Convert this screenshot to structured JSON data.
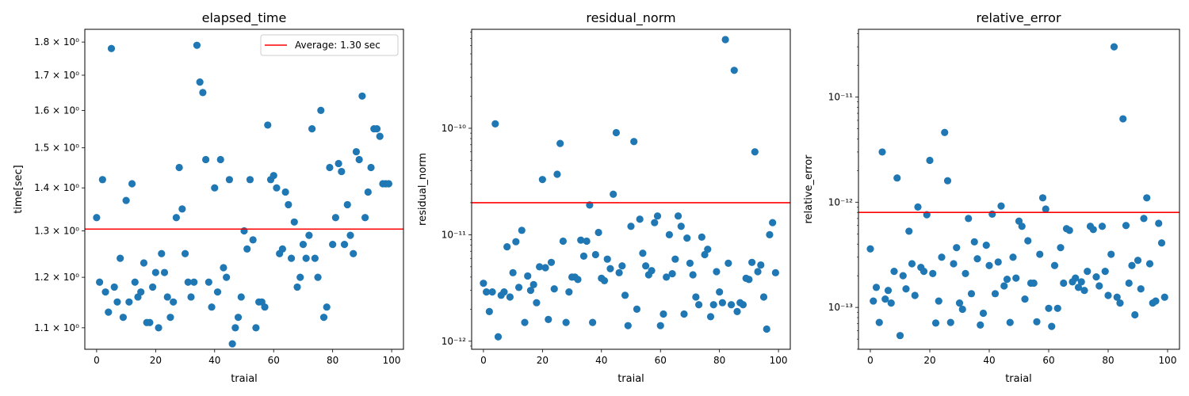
{
  "chart_data": [
    {
      "type": "scatter",
      "title": "elapsed_time",
      "xlabel": "traial",
      "ylabel": "time[sec]",
      "xlim": [
        -4,
        104
      ],
      "ylim": [
        1.06,
        1.84
      ],
      "yscale": "log",
      "x_ticks": [
        0,
        20,
        40,
        60,
        80,
        100
      ],
      "y_ticks": [
        {
          "value": 1.1,
          "label": "1.1 × 10⁰"
        },
        {
          "value": 1.2,
          "label": "1.2 × 10⁰"
        },
        {
          "value": 1.3,
          "label": "1.3 × 10⁰"
        },
        {
          "value": 1.4,
          "label": "1.4 × 10⁰"
        },
        {
          "value": 1.5,
          "label": "1.5 × 10⁰"
        },
        {
          "value": 1.6,
          "label": "1.6 × 10⁰"
        },
        {
          "value": 1.7,
          "label": "1.7 × 10⁰"
        },
        {
          "value": 1.8,
          "label": "1.8 × 10⁰"
        }
      ],
      "hline": {
        "value": 1.304,
        "color": "#ff0000",
        "label": "Average: 1.30 sec"
      },
      "legend_position": "top-right",
      "marker_color": "#1f77b4",
      "x": [
        0,
        1,
        2,
        3,
        4,
        5,
        6,
        7,
        8,
        9,
        10,
        11,
        12,
        13,
        14,
        15,
        16,
        17,
        18,
        19,
        20,
        21,
        22,
        23,
        24,
        25,
        26,
        27,
        28,
        29,
        30,
        31,
        32,
        33,
        34,
        35,
        36,
        37,
        38,
        39,
        40,
        41,
        42,
        43,
        44,
        45,
        46,
        47,
        48,
        49,
        50,
        51,
        52,
        53,
        54,
        55,
        56,
        57,
        58,
        59,
        60,
        61,
        62,
        63,
        64,
        65,
        66,
        67,
        68,
        69,
        70,
        71,
        72,
        73,
        74,
        75,
        76,
        77,
        78,
        79,
        80,
        81,
        82,
        83,
        84,
        85,
        86,
        87,
        88,
        89,
        90,
        91,
        92,
        93,
        94,
        95,
        96,
        97,
        98,
        99
      ],
      "y": [
        1.33,
        1.19,
        1.42,
        1.17,
        1.13,
        1.78,
        1.18,
        1.15,
        1.24,
        1.12,
        1.37,
        1.15,
        1.41,
        1.19,
        1.16,
        1.17,
        1.23,
        1.11,
        1.11,
        1.18,
        1.21,
        1.1,
        1.25,
        1.21,
        1.16,
        1.12,
        1.15,
        1.33,
        1.45,
        1.35,
        1.25,
        1.19,
        1.16,
        1.19,
        1.79,
        1.68,
        1.65,
        1.47,
        1.19,
        1.14,
        1.4,
        1.17,
        1.47,
        1.22,
        1.2,
        1.42,
        1.07,
        1.1,
        1.12,
        1.16,
        1.3,
        1.26,
        1.42,
        1.28,
        1.1,
        1.15,
        1.15,
        1.14,
        1.56,
        1.42,
        1.43,
        1.4,
        1.25,
        1.26,
        1.39,
        1.36,
        1.24,
        1.32,
        1.18,
        1.2,
        1.27,
        1.24,
        1.29,
        1.55,
        1.24,
        1.2,
        1.6,
        1.12,
        1.14,
        1.45,
        1.27,
        1.33,
        1.46,
        1.44,
        1.27,
        1.36,
        1.29,
        1.25,
        1.49,
        1.47,
        1.64,
        1.33,
        1.39,
        1.45,
        1.55,
        1.55,
        1.53,
        1.41,
        1.41,
        1.41
      ]
    },
    {
      "type": "scatter",
      "title": "residual_norm",
      "xlabel": "traial",
      "ylabel": "residual_norm",
      "xlim": [
        -4,
        104
      ],
      "ylim": [
        8.4e-13,
        8.5e-10
      ],
      "yscale": "log",
      "x_ticks": [
        0,
        20,
        40,
        60,
        80,
        100
      ],
      "y_ticks": [
        {
          "value": 1e-12,
          "label": "10⁻¹²"
        },
        {
          "value": 1e-11,
          "label": "10⁻¹¹"
        },
        {
          "value": 1e-10,
          "label": "10⁻¹⁰"
        }
      ],
      "hline": {
        "value": 2e-11,
        "color": "#ff0000",
        "label": ""
      },
      "marker_color": "#1f77b4",
      "x": [
        0,
        1,
        2,
        3,
        4,
        5,
        6,
        7,
        8,
        9,
        10,
        11,
        12,
        13,
        14,
        15,
        16,
        17,
        18,
        19,
        20,
        21,
        22,
        23,
        24,
        25,
        26,
        27,
        28,
        29,
        30,
        31,
        32,
        33,
        34,
        35,
        36,
        37,
        38,
        39,
        40,
        41,
        42,
        43,
        44,
        45,
        46,
        47,
        48,
        49,
        50,
        51,
        52,
        53,
        54,
        55,
        56,
        57,
        58,
        59,
        60,
        61,
        62,
        63,
        64,
        65,
        66,
        67,
        68,
        69,
        70,
        71,
        72,
        73,
        74,
        75,
        76,
        77,
        78,
        79,
        80,
        81,
        82,
        83,
        84,
        85,
        86,
        87,
        88,
        89,
        90,
        91,
        92,
        93,
        94,
        95,
        96,
        97,
        98,
        99
      ],
      "y": [
        3.5e-12,
        2.9e-12,
        1.9e-12,
        2.9e-12,
        1.1e-10,
        1.1e-12,
        2.7e-12,
        2.9e-12,
        7.7e-12,
        2.6e-12,
        4.4e-12,
        8.6e-12,
        3.2e-12,
        1.1e-11,
        1.5e-12,
        4.1e-12,
        3e-12,
        3.4e-12,
        2.3e-12,
        5e-12,
        3.3e-11,
        4.9e-12,
        1.6e-12,
        5.5e-12,
        3.1e-12,
        3.7e-11,
        7.2e-11,
        8.7e-12,
        1.5e-12,
        2.9e-12,
        4e-12,
        4e-12,
        3.8e-12,
        8.9e-12,
        6.3e-12,
        8.7e-12,
        1.9e-11,
        1.5e-12,
        6.5e-12,
        1.05e-11,
        3.9e-12,
        3.7e-12,
        5.9e-12,
        4.8e-12,
        2.4e-11,
        9.1e-11,
        4.4e-12,
        5.1e-12,
        2.7e-12,
        1.4e-12,
        1.2e-11,
        7.5e-11,
        2e-12,
        1.4e-11,
        6.7e-12,
        5.1e-12,
        4.2e-12,
        4.6e-12,
        1.3e-11,
        1.5e-11,
        1.4e-12,
        1.8e-12,
        4e-12,
        1e-11,
        4.3e-12,
        5.9e-12,
        1.5e-11,
        1.2e-11,
        1.8e-12,
        9.3e-12,
        5.4e-12,
        4.2e-12,
        2.6e-12,
        2.2e-12,
        9.5e-12,
        6.5e-12,
        7.3e-12,
        1.7e-12,
        2.2e-12,
        4.5e-12,
        2.9e-12,
        2.3e-12,
        6.8e-10,
        5.4e-12,
        2.2e-12,
        3.5e-10,
        1.9e-12,
        2.3e-12,
        2.2e-12,
        3.9e-12,
        3.8e-12,
        5.5e-12,
        6e-11,
        4.5e-12,
        5.2e-12,
        2.6e-12,
        1.3e-12,
        1e-11,
        1.3e-11,
        4.4e-12
      ]
    },
    {
      "type": "scatter",
      "title": "relative_error",
      "xlabel": "traial",
      "ylabel": "relative_error",
      "xlim": [
        -4,
        104
      ],
      "ylim": [
        4e-14,
        4.4e-11
      ],
      "yscale": "log",
      "x_ticks": [
        0,
        20,
        40,
        60,
        80,
        100
      ],
      "y_ticks": [
        {
          "value": 1e-13,
          "label": "10⁻¹³"
        },
        {
          "value": 1e-12,
          "label": "10⁻¹²"
        },
        {
          "value": 1e-11,
          "label": "10⁻¹¹"
        }
      ],
      "hline": {
        "value": 8e-13,
        "color": "#ff0000",
        "label": ""
      },
      "marker_color": "#1f77b4",
      "x": [
        0,
        1,
        2,
        3,
        4,
        5,
        6,
        7,
        8,
        9,
        10,
        11,
        12,
        13,
        14,
        15,
        16,
        17,
        18,
        19,
        20,
        21,
        22,
        23,
        24,
        25,
        26,
        27,
        28,
        29,
        30,
        31,
        32,
        33,
        34,
        35,
        36,
        37,
        38,
        39,
        40,
        41,
        42,
        43,
        44,
        45,
        46,
        47,
        48,
        49,
        50,
        51,
        52,
        53,
        54,
        55,
        56,
        57,
        58,
        59,
        60,
        61,
        62,
        63,
        64,
        65,
        66,
        67,
        68,
        69,
        70,
        71,
        72,
        73,
        74,
        75,
        76,
        77,
        78,
        79,
        80,
        81,
        82,
        83,
        84,
        85,
        86,
        87,
        88,
        89,
        90,
        91,
        92,
        93,
        94,
        95,
        96,
        97,
        98,
        99
      ],
      "y": [
        3.6e-13,
        1.15e-13,
        1.55e-13,
        7.2e-14,
        3e-12,
        1.2e-13,
        1.45e-13,
        1.1e-13,
        2.2e-13,
        1.7e-12,
        5.4e-14,
        2e-13,
        1.5e-13,
        5.3e-13,
        2.6e-13,
        1.3e-13,
        9e-13,
        2.4e-13,
        2.2e-13,
        7.6e-13,
        2.5e-12,
        2.1e-13,
        7.1e-14,
        1.15e-13,
        3e-13,
        4.6e-12,
        1.6e-12,
        7.2e-14,
        2.6e-13,
        3.7e-13,
        1.1e-13,
        9.6e-14,
        2.1e-13,
        7e-13,
        1.35e-13,
        4.2e-13,
        2.9e-13,
        6.8e-14,
        8.8e-14,
        3.9e-13,
        2.5e-13,
        7.7e-13,
        1.35e-13,
        2.7e-13,
        9.2e-13,
        1.6e-13,
        1.85e-13,
        7.2e-14,
        3e-13,
        1.9e-13,
        6.6e-13,
        5.9e-13,
        1.2e-13,
        4.3e-13,
        1.7e-13,
        1.7e-13,
        7.3e-14,
        3.2e-13,
        1.1e-12,
        8.6e-13,
        9.8e-14,
        6.6e-14,
        2.5e-13,
        9.8e-14,
        3.7e-13,
        1.7e-13,
        5.6e-13,
        5.4e-13,
        1.75e-13,
        1.9e-13,
        1.55e-13,
        1.75e-13,
        1.45e-13,
        2.2e-13,
        5.9e-13,
        5.5e-13,
        1.95e-13,
        1.6e-13,
        5.9e-13,
        2.2e-13,
        1.3e-13,
        3.2e-13,
        3e-11,
        1.25e-13,
        1.1e-13,
        6.2e-12,
        6e-13,
        1.7e-13,
        2.5e-13,
        8.5e-14,
        2.8e-13,
        1.5e-13,
        7e-13,
        1.1e-12,
        2.6e-13,
        1.1e-13,
        1.15e-13,
        6.3e-13,
        4.1e-13,
        1.25e-13
      ]
    }
  ]
}
